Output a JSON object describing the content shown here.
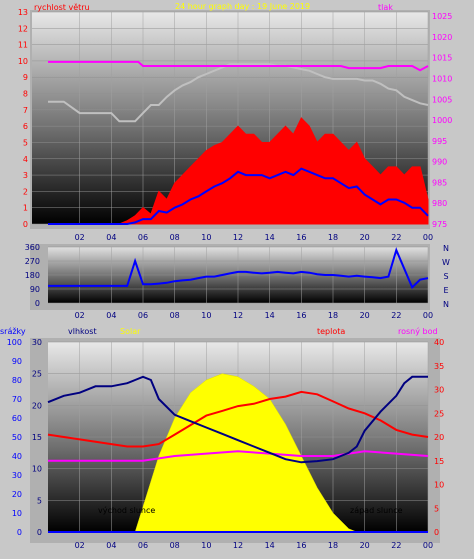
{
  "chart_data": [
    {
      "type": "line",
      "title": "24 hour graph day : 19 June 2019",
      "left_label": "rychlost větru",
      "right_label": "tlak",
      "x_ticks": [
        "02",
        "04",
        "06",
        "08",
        "10",
        "12",
        "14",
        "16",
        "18",
        "20",
        "22",
        "00"
      ],
      "y_left_ticks": [
        "0",
        "1",
        "2",
        "3",
        "4",
        "5",
        "6",
        "7",
        "8",
        "9",
        "10",
        "11",
        "12",
        "13"
      ],
      "y_right_ticks": [
        "975",
        "980",
        "985",
        "990",
        "995",
        "1000",
        "1005",
        "1010",
        "1015",
        "1020",
        "1025"
      ],
      "ylim_left": [
        0,
        13
      ],
      "ylim_right": [
        975,
        1026
      ],
      "colors": {
        "gust": "#ff0000",
        "avg": "#0000ff",
        "pressure": "#ff00ff",
        "wind_max": "#c0c0c0",
        "title": "#ffff00"
      },
      "series": [
        {
          "name": "gust",
          "x": [
            0,
            1,
            2,
            3,
            4,
            4.5,
            5,
            5.5,
            6,
            6.5,
            7,
            7.5,
            8,
            8.5,
            9,
            9.5,
            10,
            10.5,
            11,
            11.5,
            12,
            12.5,
            13,
            13.5,
            14,
            14.5,
            15,
            15.5,
            16,
            16.5,
            17,
            17.5,
            18,
            18.5,
            19,
            19.5,
            20,
            20.5,
            21,
            21.5,
            22,
            22.5,
            23,
            23.5,
            24
          ],
          "values": [
            0,
            0,
            0,
            0,
            0,
            0,
            0.2,
            0.5,
            1,
            0.6,
            2,
            1.5,
            2.5,
            3,
            3.5,
            4,
            4.5,
            4.8,
            5,
            5.5,
            6,
            5.5,
            5.5,
            5,
            5,
            5.5,
            6,
            5.5,
            6.5,
            6,
            5,
            5.5,
            5.5,
            5,
            4.5,
            5,
            4,
            3.5,
            3,
            3.5,
            3.5,
            3,
            3.5,
            3.5,
            1.5
          ]
        },
        {
          "name": "avg",
          "x": [
            0,
            1,
            2,
            3,
            4,
            4.5,
            5,
            5.5,
            6,
            6.5,
            7,
            7.5,
            8,
            8.5,
            9,
            9.5,
            10,
            10.5,
            11,
            11.5,
            12,
            12.5,
            13,
            13.5,
            14,
            14.5,
            15,
            15.5,
            16,
            16.5,
            17,
            17.5,
            18,
            18.5,
            19,
            19.5,
            20,
            20.5,
            21,
            21.5,
            22,
            22.5,
            23,
            23.5,
            24
          ],
          "values": [
            0,
            0,
            0,
            0,
            0,
            0,
            0,
            0.1,
            0.3,
            0.3,
            0.8,
            0.7,
            1,
            1.2,
            1.5,
            1.7,
            2,
            2.3,
            2.5,
            2.8,
            3.2,
            3,
            3,
            3,
            2.8,
            3,
            3.2,
            3,
            3.4,
            3.2,
            3,
            2.8,
            2.8,
            2.5,
            2.2,
            2.3,
            1.8,
            1.5,
            1.2,
            1.5,
            1.5,
            1.3,
            1,
            1,
            0.5
          ]
        },
        {
          "name": "pressure",
          "x": [
            0,
            3,
            5.7,
            6,
            18.5,
            19,
            21,
            21.5,
            23,
            23.5,
            24
          ],
          "values": [
            1014,
            1014,
            1014,
            1013,
            1013,
            1012.5,
            1012.5,
            1013,
            1013,
            1012,
            1013
          ]
        },
        {
          "name": "wind_max",
          "x": [
            0,
            1,
            2,
            3,
            4,
            4.5,
            5,
            5.5,
            6,
            6.5,
            7,
            7.5,
            8,
            8.5,
            9,
            9.5,
            10,
            10.5,
            11,
            11.5,
            12,
            12.5,
            13,
            13.5,
            14,
            14.5,
            15,
            15.5,
            16,
            16.5,
            17,
            17.5,
            18,
            18.5,
            19,
            19.5,
            20,
            20.5,
            21,
            21.5,
            22,
            22.5,
            23,
            23.5,
            24
          ],
          "values": [
            7.5,
            7.5,
            6.8,
            6.8,
            6.8,
            6.3,
            6.3,
            6.3,
            6.8,
            7.3,
            7.3,
            7.8,
            8.2,
            8.5,
            8.7,
            9,
            9.2,
            9.4,
            9.6,
            9.8,
            9.8,
            9.8,
            9.8,
            9.8,
            9.8,
            9.7,
            9.7,
            9.6,
            9.5,
            9.4,
            9.2,
            9,
            8.9,
            8.9,
            8.9,
            8.9,
            8.8,
            8.8,
            8.6,
            8.3,
            8.2,
            7.8,
            7.6,
            7.4,
            7.3
          ]
        }
      ]
    },
    {
      "type": "line",
      "title": "",
      "x_ticks": [
        "02",
        "04",
        "06",
        "08",
        "10",
        "12",
        "14",
        "16",
        "18",
        "20",
        "22",
        "00"
      ],
      "y_ticks": [
        "0",
        "90",
        "180",
        "270",
        "360"
      ],
      "ylim": [
        0,
        360
      ],
      "compass": [
        "N",
        "W",
        "S",
        "E",
        "N"
      ],
      "colors": {
        "direction": "#0000ff"
      },
      "series": [
        {
          "name": "direction",
          "x": [
            0,
            1,
            2,
            3,
            4,
            4.5,
            5,
            5.5,
            6,
            6.5,
            7,
            7.5,
            8,
            8.5,
            9,
            9.5,
            10,
            10.5,
            11,
            11.5,
            12,
            12.5,
            13,
            13.5,
            14,
            14.5,
            15,
            15.5,
            16,
            16.5,
            17,
            17.5,
            18,
            18.5,
            19,
            19.5,
            20,
            20.5,
            21,
            21.5,
            22,
            22.5,
            23,
            23.5,
            24
          ],
          "values": [
            110,
            110,
            110,
            110,
            110,
            110,
            110,
            270,
            120,
            120,
            125,
            130,
            140,
            145,
            150,
            160,
            170,
            170,
            180,
            190,
            200,
            200,
            195,
            190,
            195,
            200,
            195,
            190,
            200,
            195,
            185,
            180,
            180,
            175,
            170,
            175,
            170,
            165,
            160,
            170,
            340,
            220,
            100,
            150,
            160
          ]
        }
      ]
    },
    {
      "type": "line",
      "title": "",
      "labels": {
        "rain": "srážky",
        "humidity": "vlhkost",
        "solar": "Solar",
        "temperature": "teplota",
        "dewpoint": "rosný bod",
        "sunrise": "východ slunce",
        "sunset": "západ slunce"
      },
      "x_ticks": [
        "02",
        "04",
        "06",
        "08",
        "10",
        "12",
        "14",
        "16",
        "18",
        "20",
        "22",
        "00"
      ],
      "y_rain_ticks": [
        "0",
        "10",
        "20",
        "30",
        "40",
        "50",
        "60",
        "70",
        "80",
        "90",
        "100"
      ],
      "y_humidity_ticks": [
        "0",
        "5",
        "10",
        "15",
        "20",
        "25",
        "30"
      ],
      "y_temp_ticks": [
        "0",
        "5",
        "10",
        "15",
        "20",
        "25",
        "30",
        "35",
        "40"
      ],
      "ylim_humidity": [
        0,
        30
      ],
      "ylim_temp": [
        0,
        40
      ],
      "colors": {
        "humidity": "#000080",
        "temperature": "#ff0000",
        "dewpoint": "#ff00ff",
        "solar": "#ffff00",
        "rain": "#0000ff",
        "labels_solar": "#ffff00",
        "labels_temp": "#ff0000",
        "labels_dew": "#ff00ff"
      },
      "series": [
        {
          "name": "humidity",
          "x": [
            0,
            1,
            2,
            3,
            4,
            5,
            5.5,
            6,
            6.5,
            7,
            8,
            9,
            10,
            11,
            12,
            13,
            14,
            15,
            16,
            17,
            18,
            18.5,
            19,
            19.5,
            20,
            21,
            22,
            22.5,
            23,
            24
          ],
          "values": [
            20.5,
            21.5,
            22,
            23,
            23,
            23.5,
            24,
            24.5,
            24,
            21,
            18.5,
            17.5,
            16.5,
            15.5,
            14.5,
            13.5,
            12.5,
            11.5,
            11,
            11.2,
            11.5,
            12,
            12.5,
            13.5,
            16,
            19,
            21.5,
            23.5,
            24.5,
            24.5
          ]
        },
        {
          "name": "temperature",
          "x": [
            0,
            1,
            2,
            3,
            4,
            5,
            6,
            7,
            8,
            9,
            10,
            11,
            12,
            13,
            14,
            15,
            16,
            17,
            18,
            19,
            20,
            21,
            22,
            23,
            24
          ],
          "values": [
            20.5,
            20,
            19.5,
            19,
            18.5,
            18,
            18,
            18.5,
            20.5,
            22.5,
            24.5,
            25.5,
            26.5,
            27,
            28,
            28.5,
            29.5,
            29,
            27.5,
            26,
            25,
            23.5,
            21.5,
            20.5,
            20
          ]
        },
        {
          "name": "dewpoint",
          "x": [
            0,
            2,
            4,
            6,
            7,
            8,
            10,
            12,
            14,
            16,
            18,
            19,
            20,
            22,
            24
          ],
          "values": [
            15,
            15,
            15,
            15,
            15.5,
            16,
            16.5,
            17,
            16.5,
            16,
            16,
            16.5,
            17,
            16.5,
            16
          ]
        },
        {
          "name": "solar",
          "x": [
            5.5,
            6,
            7,
            8,
            9,
            10,
            11,
            12,
            13,
            14,
            15,
            16,
            17,
            18,
            19,
            19.5
          ],
          "values": [
            0,
            4,
            12,
            18,
            22,
            24,
            25,
            24.5,
            23,
            21,
            17,
            12,
            7,
            3,
            0.5,
            0
          ]
        },
        {
          "name": "rain",
          "x": [
            0,
            24
          ],
          "values": [
            0,
            0
          ]
        }
      ]
    }
  ]
}
